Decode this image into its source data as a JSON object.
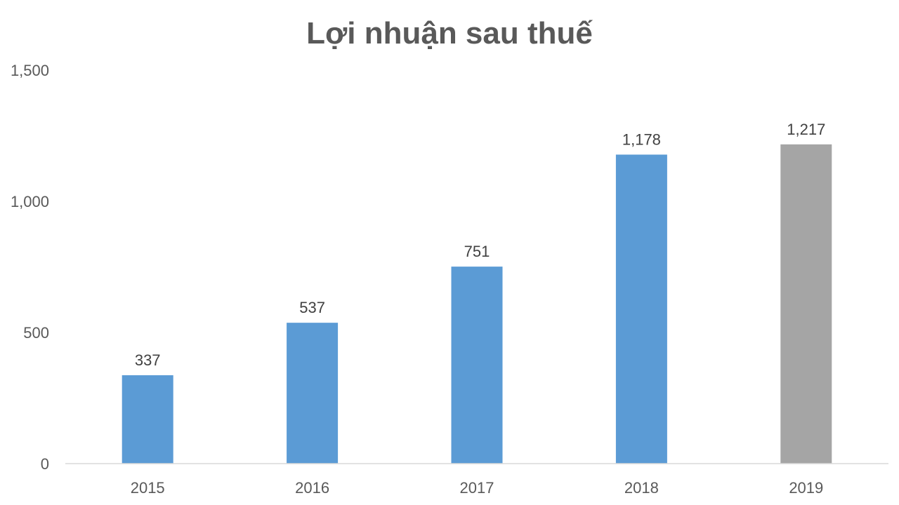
{
  "chart_data": {
    "type": "bar",
    "title": "Lợi nhuận sau thuế",
    "categories": [
      "2015",
      "2016",
      "2017",
      "2018",
      "2019"
    ],
    "values": [
      337,
      537,
      751,
      1178,
      1217
    ],
    "data_labels": [
      "337",
      "537",
      "751",
      "1,178",
      "1,217"
    ],
    "ylim": [
      0,
      1500
    ],
    "yticks": [
      0,
      500,
      1000,
      1500
    ],
    "ytick_labels": [
      "0",
      "500",
      "1,000",
      "1,500"
    ],
    "grid": false,
    "colors": [
      "#5B9BD5",
      "#5B9BD5",
      "#5B9BD5",
      "#5B9BD5",
      "#A5A5A5"
    ]
  }
}
